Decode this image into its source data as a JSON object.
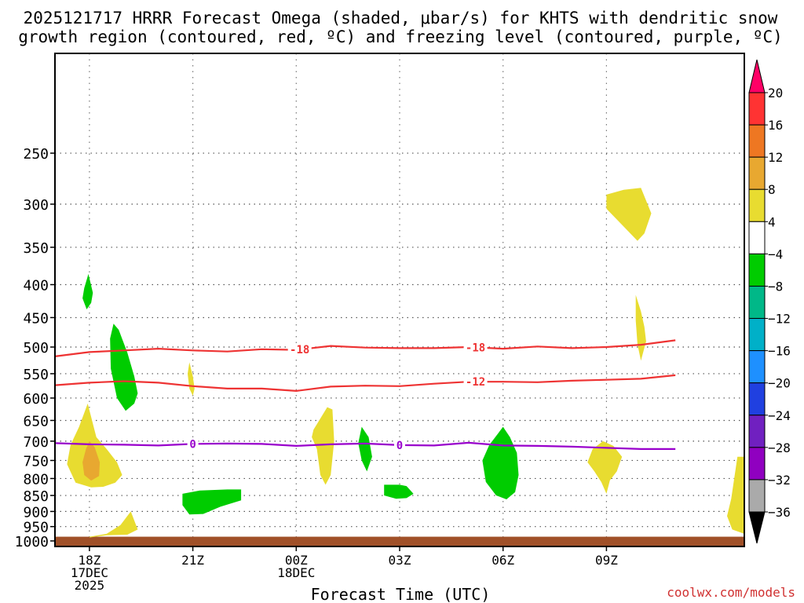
{
  "title_line1": "2025121717 HRRR Forecast Omega (shaded, μbar/s) for KHTS with dendritic snow",
  "title_line2": "growth region (contoured, red, ºC) and freezing level (contoured, purple, ºC)",
  "watermark": "coolwx.com/models",
  "chart_data": {
    "type": "time-height contour",
    "title": "2025121717 HRRR Forecast Omega (shaded, μbar/s) for KHTS with dendritic snow growth region (contoured, red, ºC) and freezing level (contoured, purple, ºC)",
    "xlabel": "Forecast Time (UTC)",
    "ylabel": "",
    "x_unit": "hours from 2025-12-17 17Z",
    "xlim": [
      0,
      20
    ],
    "ylim_hpa": [
      1020,
      175
    ],
    "y_scale": "log-pressure",
    "y_ticks": [
      250,
      300,
      350,
      400,
      450,
      500,
      550,
      600,
      650,
      700,
      750,
      800,
      850,
      900,
      950,
      1000
    ],
    "x_ticks": [
      {
        "x": 1,
        "label": "18Z",
        "sub": [
          "17DEC",
          "2025"
        ]
      },
      {
        "x": 4,
        "label": "21Z",
        "sub": []
      },
      {
        "x": 7,
        "label": "00Z",
        "sub": [
          "18DEC"
        ]
      },
      {
        "x": 10,
        "label": "03Z",
        "sub": []
      },
      {
        "x": 13,
        "label": "06Z",
        "sub": []
      },
      {
        "x": 16,
        "label": "09Z",
        "sub": []
      }
    ],
    "ground_level_hpa": 985,
    "ground_color": "#a05028",
    "colorbar": {
      "levels": [
        "20",
        "16",
        "12",
        "8",
        "4",
        "−4",
        "−8",
        "−12",
        "−16",
        "−20",
        "−24",
        "−28",
        "−32",
        "−36"
      ],
      "colors": [
        "#ff0066",
        "#ff3333",
        "#ee7722",
        "#e8a830",
        "#e8dc30",
        "#ffffff",
        "#00cc00",
        "#00b888",
        "#00b0c8",
        "#1e90ff",
        "#2040e0",
        "#7020c0",
        "#9000c0",
        "#aaaaaa",
        "#000000"
      ]
    },
    "contours": [
      {
        "name": "-18C isotherm",
        "color": "#ee3333",
        "label": "-18",
        "label_x": [
          7.1,
          12.2
        ],
        "x": [
          0,
          1,
          2,
          3,
          4,
          5,
          6,
          7,
          8,
          9,
          10,
          11,
          12,
          13,
          14,
          15,
          16,
          17,
          18
        ],
        "p": [
          517,
          509,
          506,
          503,
          506,
          508,
          504,
          505,
          498,
          501,
          502,
          502,
          500,
          503,
          499,
          502,
          500,
          496,
          488
        ]
      },
      {
        "name": "-12C isotherm",
        "color": "#ee3333",
        "label": "-12",
        "label_x": [
          12.2
        ],
        "x": [
          0,
          1,
          2,
          3,
          4,
          5,
          6,
          7,
          8,
          9,
          10,
          11,
          12,
          13,
          14,
          15,
          16,
          17,
          18
        ],
        "p": [
          573,
          568,
          565,
          568,
          575,
          580,
          580,
          585,
          576,
          574,
          575,
          570,
          566,
          566,
          567,
          564,
          562,
          560,
          553
        ]
      },
      {
        "name": "0C freezing level",
        "color": "#9900cc",
        "label": "0",
        "label_x": [
          4.0,
          10.0
        ],
        "x": [
          0,
          1,
          2,
          3,
          4,
          5,
          6,
          7,
          8,
          9,
          10,
          11,
          12,
          13,
          14,
          15,
          16,
          17,
          18
        ],
        "p": [
          705,
          708,
          709,
          711,
          707,
          706,
          707,
          712,
          708,
          706,
          710,
          711,
          704,
          711,
          712,
          714,
          717,
          720,
          720
        ]
      }
    ],
    "omega_regions": [
      {
        "value": "4 to 8",
        "color": "#e8dc30",
        "x": [
          0.95,
          1.2,
          1.5,
          1.8,
          1.95,
          1.75,
          1.4,
          1.05,
          0.6,
          0.35,
          0.45,
          0.7
        ],
        "p": [
          612,
          690,
          720,
          755,
          790,
          812,
          824,
          826,
          812,
          760,
          710,
          665
        ]
      },
      {
        "value": "8 to 12",
        "color": "#e8a830",
        "x": [
          1.0,
          1.15,
          1.3,
          1.28,
          1.05,
          0.85,
          0.8,
          0.9
        ],
        "p": [
          700,
          715,
          755,
          793,
          806,
          790,
          755,
          720
        ]
      },
      {
        "value": "-4 to -8",
        "color": "#00cc00",
        "x": [
          0.97,
          1.1,
          1.05,
          0.92,
          0.8,
          0.85
        ],
        "p": [
          385,
          412,
          427,
          437,
          420,
          405
        ]
      },
      {
        "value": "-4 to -8",
        "color": "#00cc00",
        "x": [
          1.7,
          1.85,
          2.1,
          2.3,
          2.4,
          2.3,
          2.05,
          1.8,
          1.62,
          1.6
        ],
        "p": [
          460,
          470,
          510,
          555,
          590,
          612,
          628,
          600,
          540,
          485
        ]
      },
      {
        "value": "4 to 8",
        "color": "#e8dc30",
        "x": [
          1.0,
          1.5,
          1.9,
          2.2,
          2.4,
          2.1,
          1.5,
          1.0
        ],
        "p": [
          985,
          975,
          945,
          900,
          960,
          978,
          980,
          988
        ]
      },
      {
        "value": "4 to 8",
        "color": "#e8dc30",
        "x": [
          3.9,
          4.0,
          4.05,
          4.0,
          3.9,
          3.85
        ],
        "p": [
          528,
          555,
          580,
          595,
          580,
          550
        ]
      },
      {
        "value": "-4 to -8",
        "color": "#00cc00",
        "x": [
          3.7,
          4.2,
          5.0,
          5.4,
          5.4,
          4.8,
          4.3,
          3.9,
          3.7
        ],
        "p": [
          845,
          835,
          832,
          832,
          865,
          885,
          908,
          910,
          880
        ]
      },
      {
        "value": "4 to 8",
        "color": "#e8dc30",
        "x": [
          7.5,
          7.9,
          8.05,
          8.1,
          8.0,
          7.85,
          7.7,
          7.6,
          7.45
        ],
        "p": [
          672,
          620,
          625,
          700,
          790,
          818,
          790,
          720,
          690
        ]
      },
      {
        "value": "-4 to -8",
        "color": "#00cc00",
        "x": [
          8.9,
          9.1,
          9.2,
          9.05,
          8.9,
          8.8
        ],
        "p": [
          665,
          690,
          740,
          780,
          750,
          705
        ]
      },
      {
        "value": "-4 to -8",
        "color": "#00cc00",
        "x": [
          9.55,
          10.0,
          10.2,
          10.4,
          10.2,
          9.9,
          9.55
        ],
        "p": [
          818,
          818,
          822,
          845,
          858,
          860,
          850
        ]
      },
      {
        "value": "-4 to -8",
        "color": "#00cc00",
        "x": [
          13.0,
          13.2,
          13.4,
          13.45,
          13.35,
          13.1,
          12.8,
          12.5,
          12.4,
          12.6
        ],
        "p": [
          665,
          690,
          730,
          790,
          840,
          862,
          850,
          810,
          750,
          710
        ]
      },
      {
        "value": "4 to 8",
        "color": "#e8dc30",
        "x": [
          15.9,
          16.2,
          16.45,
          16.3,
          16.1,
          16.0,
          15.85,
          15.65,
          15.45,
          15.6
        ],
        "p": [
          700,
          712,
          740,
          780,
          805,
          845,
          810,
          780,
          755,
          720
        ]
      },
      {
        "value": "4 to 8",
        "color": "#e8dc30",
        "x": [
          16.0,
          16.5,
          17.0,
          17.3,
          17.1,
          16.9,
          16.5,
          16.0
        ],
        "p": [
          290,
          285,
          283,
          310,
          333,
          342,
          325,
          305
        ]
      },
      {
        "value": "4 to 8",
        "color": "#e8dc30",
        "x": [
          16.85,
          17.0,
          17.1,
          17.15,
          17.0,
          16.9,
          16.85
        ],
        "p": [
          415,
          440,
          465,
          490,
          525,
          495,
          455
        ]
      },
      {
        "value": "4 to 8",
        "color": "#e8dc30",
        "x": [
          19.8,
          20.0,
          20.0,
          19.65,
          19.5,
          19.62
        ],
        "p": [
          740,
          740,
          975,
          960,
          915,
          860
        ]
      }
    ]
  }
}
